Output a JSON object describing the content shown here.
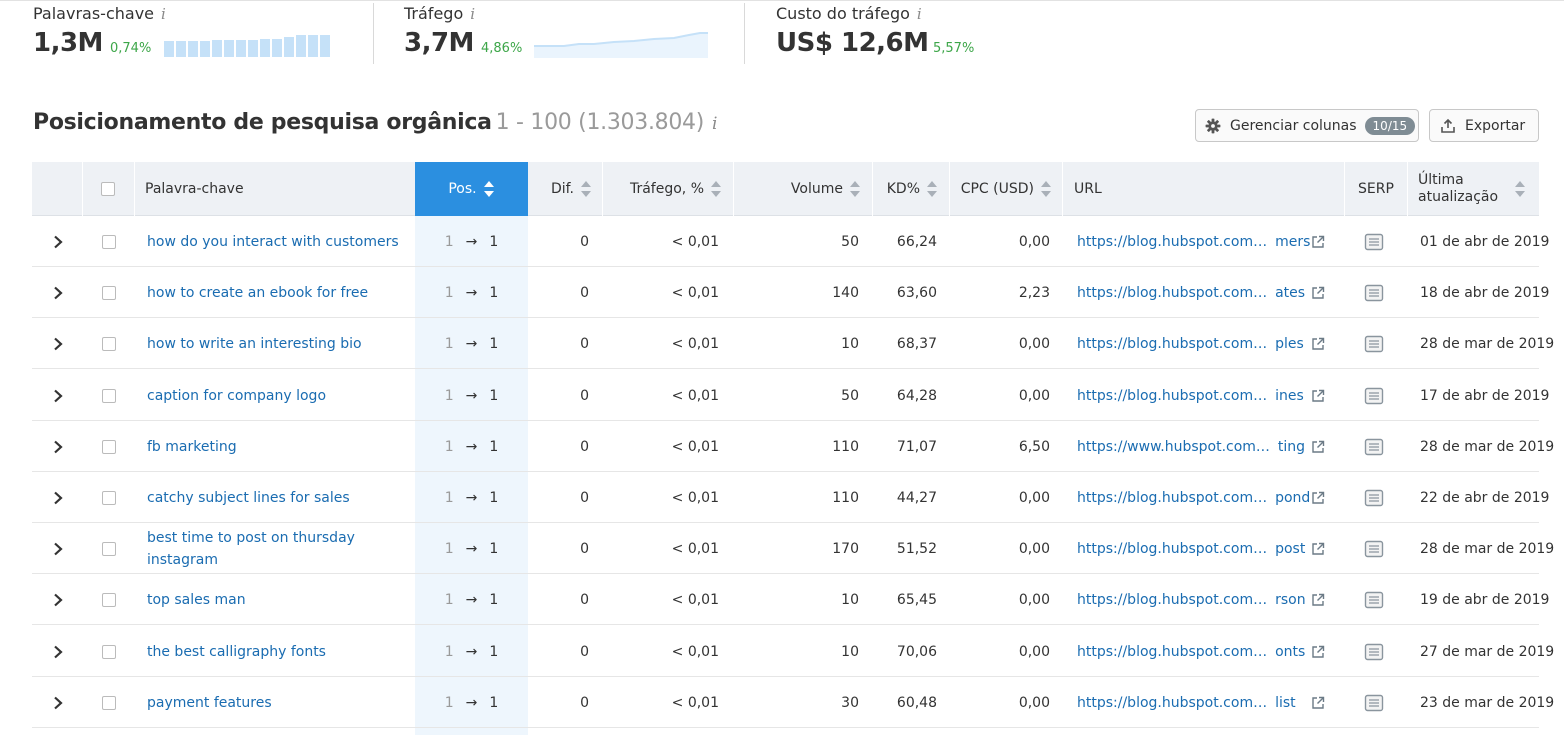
{
  "metrics": [
    {
      "label": "Palavras-chave",
      "value": "1,3M",
      "delta": "0,74%",
      "info": "i"
    },
    {
      "label": "Tráfego",
      "value": "3,7M",
      "delta": "4,86%",
      "info": "i"
    },
    {
      "label": "Custo do tráfego",
      "value": "US$ 12,6M",
      "delta": "5,57%",
      "info": "i"
    }
  ],
  "section": {
    "title": "Posicionamento de pesquisa orgânica",
    "range": "1 - 100 (1.303.804)",
    "info": "i"
  },
  "toolbar": {
    "manage_label": "Gerenciar colunas",
    "manage_badge": "10/15",
    "export_label": "Exportar"
  },
  "columns": {
    "keyword": "Palavra-chave",
    "pos": "Pos.",
    "dif": "Dif.",
    "traffic": "Tráfego, %",
    "volume": "Volume",
    "kd": "KD%",
    "cpc": "CPC (USD)",
    "url": "URL",
    "serp": "SERP",
    "updated_1": "Última",
    "updated_2": "atualização"
  },
  "colors": {
    "accent": "#2b8fe0",
    "link": "#1a6cb1",
    "positive": "#3da649",
    "header_bg": "#eef1f5"
  },
  "rows": [
    {
      "keyword": "how do you interact with customers",
      "pos_prev": "1",
      "pos_cur": "1",
      "dif": "0",
      "traffic": "< 0,01",
      "volume": "50",
      "kd": "66,24",
      "cpc": "0,00",
      "url": "https://blog.hubspot.com…",
      "url_tail": "mers",
      "date": "01 de abr de 2019"
    },
    {
      "keyword": "how to create an ebook for free",
      "pos_prev": "1",
      "pos_cur": "1",
      "dif": "0",
      "traffic": "< 0,01",
      "volume": "140",
      "kd": "63,60",
      "cpc": "2,23",
      "url": "https://blog.hubspot.com…",
      "url_tail": "ates",
      "date": "18 de abr de 2019"
    },
    {
      "keyword": "how to write an interesting bio",
      "pos_prev": "1",
      "pos_cur": "1",
      "dif": "0",
      "traffic": "< 0,01",
      "volume": "10",
      "kd": "68,37",
      "cpc": "0,00",
      "url": "https://blog.hubspot.com…",
      "url_tail": "ples",
      "date": "28 de mar de 2019"
    },
    {
      "keyword": "caption for company logo",
      "pos_prev": "1",
      "pos_cur": "1",
      "dif": "0",
      "traffic": "< 0,01",
      "volume": "50",
      "kd": "64,28",
      "cpc": "0,00",
      "url": "https://blog.hubspot.com…",
      "url_tail": "ines",
      "date": "17 de abr de 2019"
    },
    {
      "keyword": "fb marketing",
      "pos_prev": "1",
      "pos_cur": "1",
      "dif": "0",
      "traffic": "< 0,01",
      "volume": "110",
      "kd": "71,07",
      "cpc": "6,50",
      "url": "https://www.hubspot.com…",
      "url_tail": "ting",
      "date": "28 de mar de 2019"
    },
    {
      "keyword": "catchy subject lines for sales",
      "pos_prev": "1",
      "pos_cur": "1",
      "dif": "0",
      "traffic": "< 0,01",
      "volume": "110",
      "kd": "44,27",
      "cpc": "0,00",
      "url": "https://blog.hubspot.com…",
      "url_tail": "pond",
      "date": "22 de abr de 2019"
    },
    {
      "keyword": "best time to post on thursday instagram",
      "pos_prev": "1",
      "pos_cur": "1",
      "dif": "0",
      "traffic": "< 0,01",
      "volume": "170",
      "kd": "51,52",
      "cpc": "0,00",
      "url": "https://blog.hubspot.com…",
      "url_tail": "post",
      "date": "28 de mar de 2019"
    },
    {
      "keyword": "top sales man",
      "pos_prev": "1",
      "pos_cur": "1",
      "dif": "0",
      "traffic": "< 0,01",
      "volume": "10",
      "kd": "65,45",
      "cpc": "0,00",
      "url": "https://blog.hubspot.com…",
      "url_tail": "rson",
      "date": "19 de abr de 2019"
    },
    {
      "keyword": "the best calligraphy fonts",
      "pos_prev": "1",
      "pos_cur": "1",
      "dif": "0",
      "traffic": "< 0,01",
      "volume": "10",
      "kd": "70,06",
      "cpc": "0,00",
      "url": "https://blog.hubspot.com…",
      "url_tail": "onts",
      "date": "27 de mar de 2019"
    },
    {
      "keyword": "payment features",
      "pos_prev": "1",
      "pos_cur": "1",
      "dif": "0",
      "traffic": "< 0,01",
      "volume": "30",
      "kd": "60,48",
      "cpc": "0,00",
      "url": "https://blog.hubspot.com…",
      "url_tail": "list",
      "date": "23 de mar de 2019"
    }
  ]
}
